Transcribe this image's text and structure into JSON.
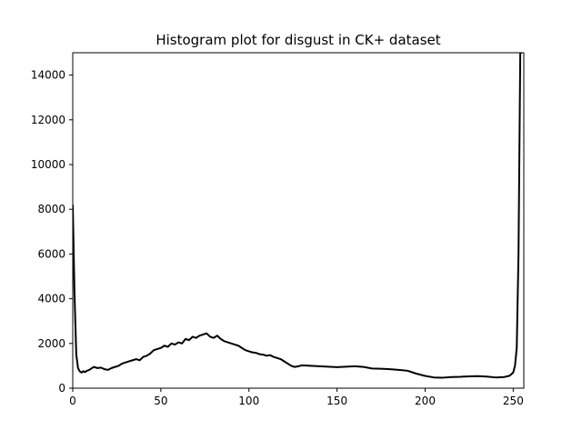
{
  "chart_data": {
    "type": "line",
    "title": "Histogram plot for disgust in CK+ dataset",
    "xlabel": "",
    "ylabel": "",
    "xlim": [
      0,
      256
    ],
    "ylim": [
      0,
      15000
    ],
    "xticks": [
      0,
      50,
      100,
      150,
      200,
      250
    ],
    "yticks": [
      0,
      2000,
      4000,
      6000,
      8000,
      10000,
      12000,
      14000
    ],
    "grid": false,
    "legend": false,
    "line_color": "#000000",
    "series": [
      {
        "x": [
          0,
          1,
          2,
          3,
          4,
          5,
          6,
          7,
          8,
          9,
          10,
          12,
          14,
          16,
          18,
          20,
          22,
          24,
          26,
          28,
          30,
          32,
          34,
          36,
          38,
          40,
          42,
          44,
          46,
          48,
          50,
          52,
          54,
          56,
          58,
          60,
          62,
          64,
          66,
          68,
          70,
          72,
          74,
          76,
          78,
          80,
          82,
          84,
          86,
          88,
          90,
          92,
          94,
          96,
          98,
          100,
          102,
          104,
          106,
          108,
          110,
          112,
          114,
          116,
          118,
          120,
          122,
          124,
          126,
          128,
          130,
          135,
          140,
          145,
          150,
          155,
          160,
          165,
          170,
          175,
          180,
          185,
          190,
          195,
          200,
          205,
          210,
          215,
          220,
          225,
          230,
          235,
          240,
          245,
          248,
          250,
          251,
          252,
          253,
          254,
          255
        ],
        "values": [
          8200,
          4200,
          1500,
          900,
          750,
          700,
          760,
          720,
          780,
          800,
          850,
          950,
          900,
          920,
          850,
          820,
          900,
          950,
          1000,
          1100,
          1150,
          1200,
          1250,
          1300,
          1250,
          1400,
          1450,
          1550,
          1700,
          1750,
          1800,
          1900,
          1850,
          2000,
          1950,
          2050,
          2000,
          2200,
          2150,
          2300,
          2250,
          2350,
          2400,
          2450,
          2300,
          2250,
          2350,
          2200,
          2100,
          2050,
          2000,
          1950,
          1900,
          1800,
          1700,
          1650,
          1600,
          1580,
          1520,
          1500,
          1450,
          1480,
          1400,
          1350,
          1300,
          1200,
          1100,
          1000,
          950,
          980,
          1020,
          1000,
          980,
          960,
          940,
          960,
          980,
          950,
          880,
          870,
          850,
          820,
          780,
          650,
          550,
          480,
          470,
          500,
          510,
          530,
          540,
          520,
          480,
          500,
          560,
          700,
          1000,
          1800,
          6000,
          15000,
          15000
        ]
      }
    ]
  }
}
